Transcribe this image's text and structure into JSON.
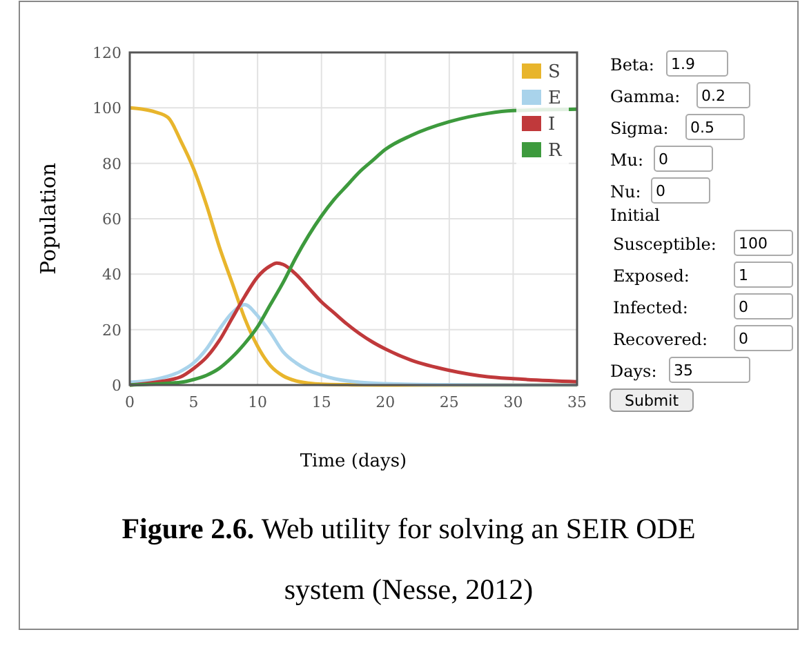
{
  "chart_data": [
    {
      "type": "line",
      "xlabel": "Time (days)",
      "ylabel": "Population",
      "xlim": [
        0,
        35
      ],
      "ylim": [
        0,
        120
      ],
      "xticks": [
        0,
        5,
        10,
        15,
        20,
        25,
        30,
        35
      ],
      "yticks": [
        0,
        20,
        40,
        60,
        80,
        100,
        120
      ],
      "grid": true,
      "legend": "top right",
      "marker": "none",
      "annotations": [
        "Figure 2.6.",
        "Web utility for solving an SEIR ODE system (Nesse, 2012)"
      ],
      "series": [
        {
          "name": "S",
          "color": "#e8b52c",
          "x": [
            0,
            1,
            2,
            3,
            4,
            5,
            6,
            7,
            8,
            9,
            10,
            11,
            12,
            13,
            14,
            15,
            17,
            20,
            25,
            30,
            35
          ],
          "values": [
            100,
            99.5,
            98.5,
            96.5,
            88,
            78,
            65,
            50,
            37,
            24,
            14,
            7,
            3.3,
            1.5,
            0.7,
            0.3,
            0.1,
            0,
            0,
            0,
            0
          ]
        },
        {
          "name": "E",
          "color": "#a9d3eb",
          "x": [
            0,
            2,
            4,
            5,
            6,
            7,
            8,
            9,
            10,
            11,
            12,
            13,
            14,
            15,
            16,
            18,
            20,
            25,
            30,
            35
          ],
          "values": [
            1,
            2,
            5,
            8,
            13,
            20,
            26,
            29,
            25,
            19,
            12,
            8,
            5.3,
            3.6,
            2.3,
            1,
            0.5,
            0.1,
            0,
            0
          ]
        },
        {
          "name": "I",
          "color": "#c0393b",
          "x": [
            0,
            2,
            4,
            5,
            6,
            7,
            8,
            9,
            10,
            11,
            11.5,
            12,
            13,
            14,
            15,
            16,
            17,
            18,
            19,
            20,
            22,
            25,
            28,
            30,
            35
          ],
          "values": [
            0,
            1,
            3,
            6,
            10,
            16,
            24,
            32,
            39,
            43,
            44,
            43.5,
            40,
            35,
            30,
            26,
            22,
            18.5,
            15.5,
            13,
            9,
            5.3,
            3,
            2.3,
            1.2
          ]
        },
        {
          "name": "R",
          "color": "#3d9a3d",
          "x": [
            0,
            4,
            5,
            6,
            7,
            8,
            9,
            10,
            11,
            12,
            13,
            14,
            15,
            16,
            17,
            18,
            19,
            20,
            22,
            25,
            28,
            30,
            35
          ],
          "values": [
            0,
            1,
            2,
            3.5,
            6,
            10,
            15,
            21,
            29,
            37,
            46,
            54,
            61,
            67,
            72,
            77,
            81,
            85,
            90,
            95,
            98,
            99,
            99.5
          ]
        }
      ]
    },
    {
      "type": "other",
      "annotations": [
        "Beta:",
        "1.9",
        "Gamma:",
        "0.2",
        "Sigma:",
        "0.5",
        "Mu:",
        "0",
        "Nu:",
        "0",
        "Initial",
        "Susceptible:",
        "100",
        "Exposed:",
        "1",
        "Infected:",
        "0",
        "Recovered:",
        "0",
        "Days:",
        "35",
        "Submit"
      ]
    }
  ]
}
